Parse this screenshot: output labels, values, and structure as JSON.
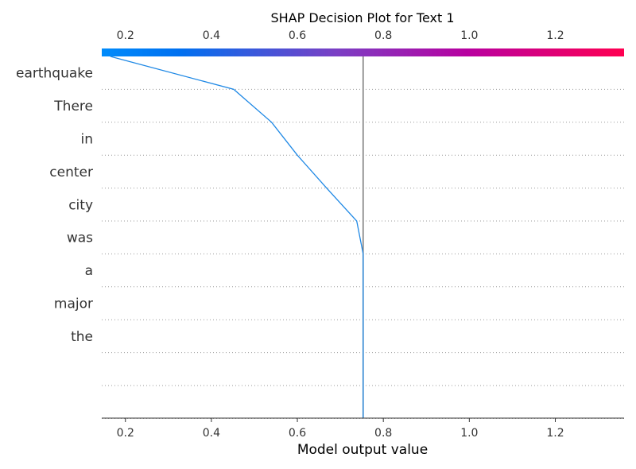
{
  "chart_data": {
    "type": "line",
    "title": "SHAP Decision Plot for Text 1",
    "xlabel": "Model output value",
    "xlim": [
      0.145,
      1.36
    ],
    "ticks": [
      0.2,
      0.4,
      0.6,
      0.8,
      1.0,
      1.2
    ],
    "tick_labels": [
      "0.2",
      "0.4",
      "0.6",
      "0.8",
      "1.0",
      "1.2"
    ],
    "base_value": 0.753,
    "features": [
      "earthquake",
      "There",
      "in",
      "center",
      "city",
      "was",
      "a",
      "major",
      "the",
      "",
      ""
    ],
    "series": [
      {
        "values": [
          0.165,
          0.452,
          0.54,
          0.6,
          0.668,
          0.738,
          0.753,
          0.753,
          0.753,
          0.753,
          0.753,
          0.753
        ]
      }
    ],
    "grid": "dotted horizontal",
    "colors": {
      "line": "#1E88E5",
      "base_line": "#808080",
      "colorbar_start": "#008BFB",
      "colorbar_mid": "#7B3FC4",
      "colorbar_end": "#FF0051",
      "grid": "#999999",
      "axis": "#333333"
    }
  }
}
